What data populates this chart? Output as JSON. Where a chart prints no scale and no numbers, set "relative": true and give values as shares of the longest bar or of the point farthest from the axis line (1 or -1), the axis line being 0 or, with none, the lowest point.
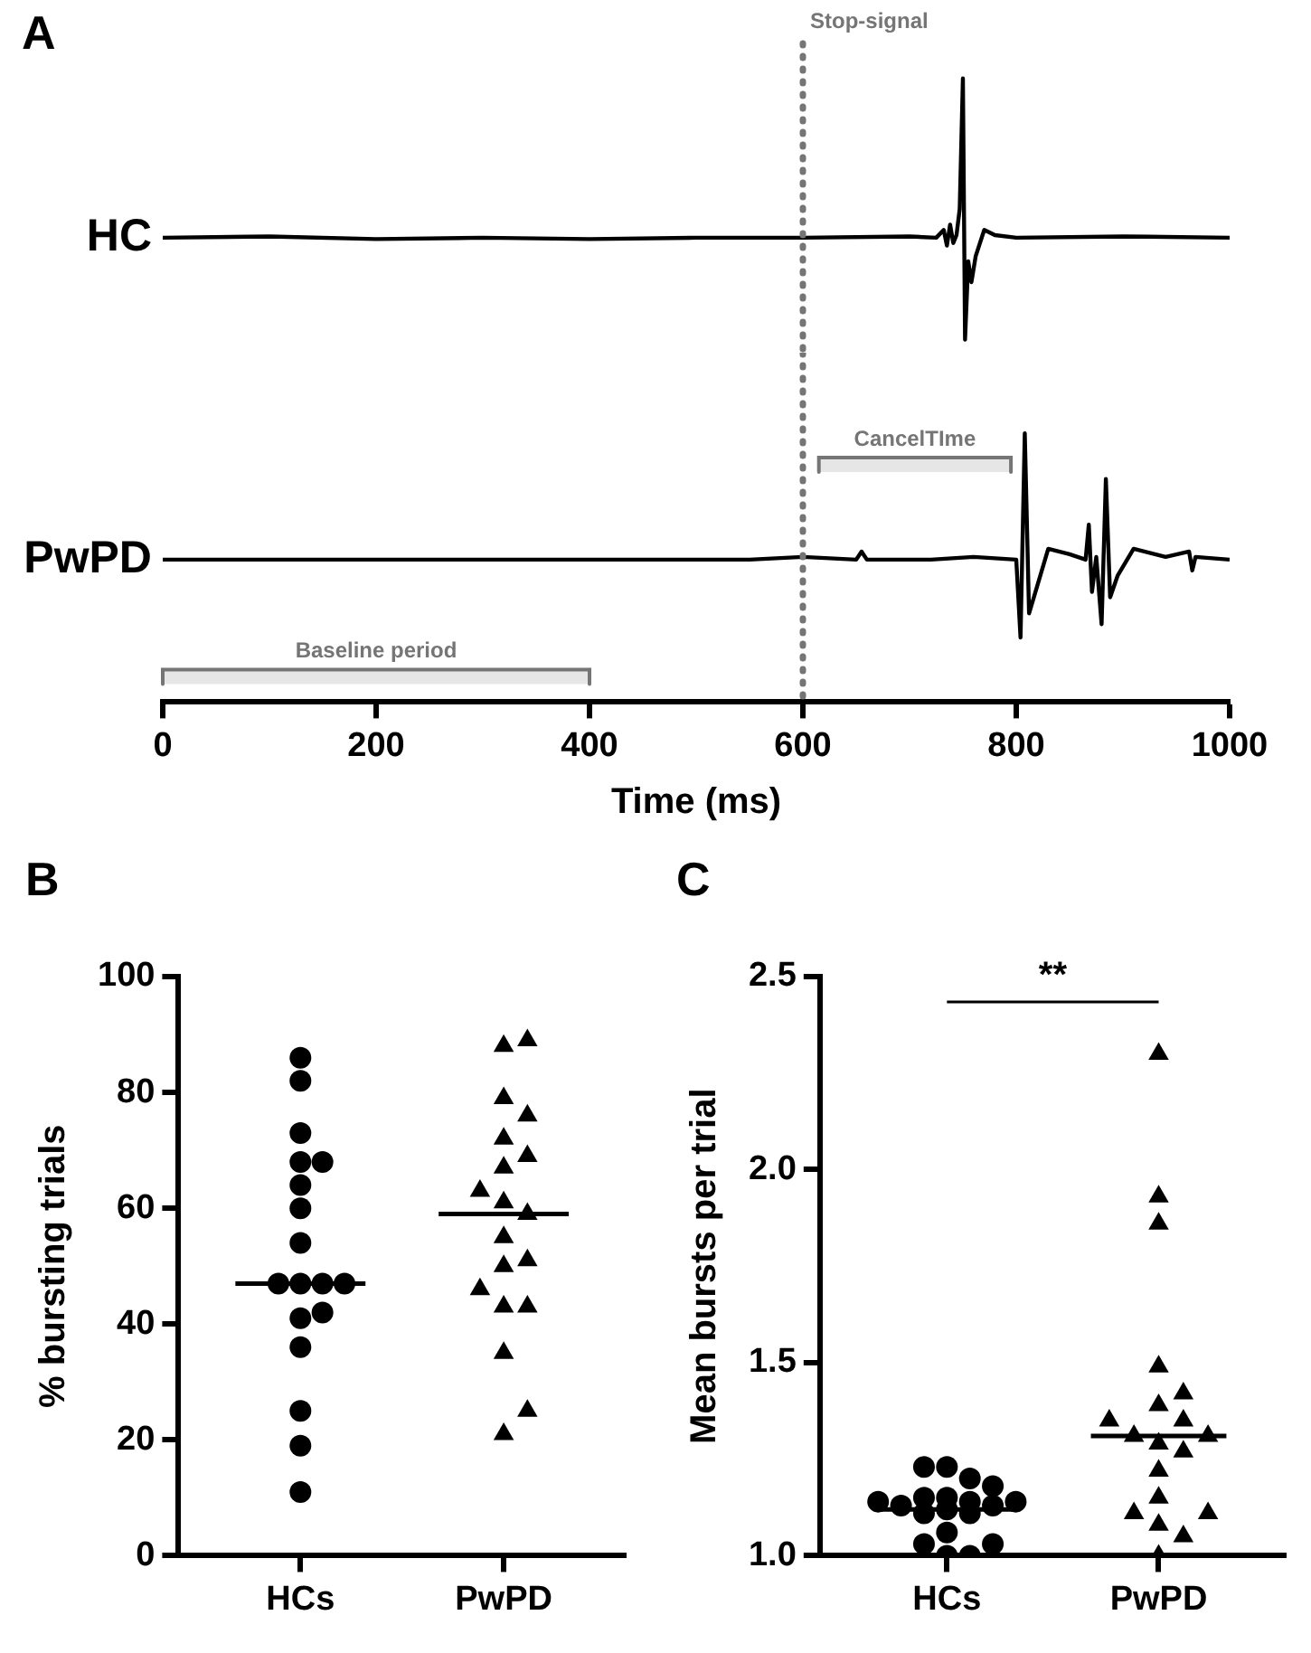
{
  "chart_data": [
    {
      "type": "line",
      "title": "A",
      "relative": true,
      "xlim": [
        0,
        1000
      ],
      "tick_labels": false,
      "series": [
        {
          "name": "HC",
          "color": "#000000",
          "x": [
            0,
            100,
            200,
            300,
            400,
            500,
            600,
            700,
            725,
            732,
            735,
            738,
            741,
            744,
            747,
            750,
            752,
            755,
            758,
            762,
            770,
            780,
            800,
            900,
            1000
          ],
          "values": [
            0.39,
            0.395,
            0.385,
            0.39,
            0.385,
            0.39,
            0.39,
            0.395,
            0.39,
            0.42,
            0.36,
            0.44,
            0.37,
            0.4,
            0.5,
            1.0,
            0.0,
            0.3,
            0.22,
            0.32,
            0.42,
            0.4,
            0.39,
            0.395,
            0.39
          ]
        }
      ],
      "ref_lines": [
        {
          "axis": "x",
          "value": 600,
          "label": "Stop-signal",
          "color": "#757575",
          "line_style": "dotted"
        }
      ]
    },
    {
      "type": "line",
      "relative": true,
      "xlim": [
        0,
        1000
      ],
      "xticks": [
        0,
        200,
        400,
        600,
        800,
        1000
      ],
      "xlabel": "Time (ms)",
      "tick_labels": "x",
      "series": [
        {
          "name": "PwPD",
          "color": "#000000",
          "x": [
            0,
            200,
            400,
            550,
            600,
            650,
            655,
            660,
            720,
            760,
            800,
            804,
            808,
            812,
            818,
            830,
            850,
            865,
            868,
            871,
            875,
            880,
            884,
            888,
            895,
            910,
            940,
            962,
            965,
            968,
            1000
          ],
          "values": [
            0.53,
            0.53,
            0.53,
            0.53,
            0.54,
            0.53,
            0.56,
            0.53,
            0.53,
            0.54,
            0.53,
            0.24,
            1.0,
            0.33,
            0.41,
            0.57,
            0.55,
            0.53,
            0.66,
            0.41,
            0.54,
            0.29,
            0.83,
            0.39,
            0.47,
            0.57,
            0.54,
            0.56,
            0.49,
            0.54,
            0.53
          ]
        }
      ],
      "ref_lines": [
        {
          "axis": "x",
          "value": 600,
          "color": "#757575",
          "line_style": "dotted"
        }
      ],
      "bands": [
        {
          "axis": "x",
          "from": 615,
          "to": 795,
          "label": "CancelTIme",
          "color": "#757575"
        },
        {
          "axis": "x",
          "from": 0,
          "to": 400,
          "label": "Baseline period",
          "color": "#757575"
        }
      ]
    },
    {
      "type": "scatter",
      "title": "B",
      "categories": [
        "HCs",
        "PwPD"
      ],
      "ylabel": "% bursting trials",
      "ylim": [
        0,
        100
      ],
      "yticks": [
        0,
        20,
        40,
        60,
        80,
        100
      ],
      "series": [
        {
          "color": "#000000",
          "marker": "circle",
          "x": [
            "HCs",
            "HCs",
            "HCs",
            "HCs",
            "HCs",
            "HCs",
            "HCs",
            "HCs",
            "HCs",
            "HCs",
            "HCs",
            "HCs",
            "HCs",
            "HCs",
            "HCs",
            "HCs",
            "HCs",
            "HCs"
          ],
          "values": [
            86,
            82,
            73,
            68,
            68,
            64,
            60,
            54,
            47,
            47,
            47,
            47,
            41,
            42,
            36,
            25,
            19,
            11
          ]
        },
        {
          "color": "#000000",
          "marker": "triangle",
          "x": [
            "PwPD",
            "PwPD",
            "PwPD",
            "PwPD",
            "PwPD",
            "PwPD",
            "PwPD",
            "PwPD",
            "PwPD",
            "PwPD",
            "PwPD",
            "PwPD",
            "PwPD",
            "PwPD",
            "PwPD",
            "PwPD",
            "PwPD",
            "PwPD",
            "PwPD"
          ],
          "values": [
            89,
            88,
            79,
            76,
            72,
            69,
            67,
            63,
            61,
            59,
            55,
            51,
            50,
            46,
            43,
            43,
            35,
            25,
            21
          ]
        },
        {
          "type": "box",
          "color": "#000000",
          "boxes": [
            {
              "low": 47,
              "q1": 47,
              "median": 47,
              "q3": 47,
              "high": 47
            },
            {
              "low": 59,
              "q1": 59,
              "median": 59,
              "q3": 59,
              "high": 59
            }
          ]
        }
      ]
    },
    {
      "type": "scatter",
      "title": "C",
      "categories": [
        "HCs",
        "PwPD"
      ],
      "ylabel": "Mean bursts per trial",
      "ylim": [
        1,
        2.5
      ],
      "yticks": [
        {
          "value": 1,
          "label": "1.0"
        },
        1.5,
        {
          "value": 2,
          "label": "2.0"
        },
        2.5
      ],
      "annotations": [
        "**"
      ],
      "series": [
        {
          "color": "#000000",
          "marker": "circle",
          "x": [
            "HCs",
            "HCs",
            "HCs",
            "HCs",
            "HCs",
            "HCs",
            "HCs",
            "HCs",
            "HCs",
            "HCs",
            "HCs",
            "HCs",
            "HCs",
            "HCs",
            "HCs",
            "HCs",
            "HCs",
            "HCs",
            "HCs"
          ],
          "values": [
            1.23,
            1.23,
            1.2,
            1.18,
            1.15,
            1.15,
            1.14,
            1.14,
            1.14,
            1.13,
            1.13,
            1.12,
            1.11,
            1.11,
            1.06,
            1.03,
            1.03,
            1.0,
            1.0
          ]
        },
        {
          "color": "#000000",
          "marker": "triangle",
          "x": [
            "PwPD",
            "PwPD",
            "PwPD",
            "PwPD",
            "PwPD",
            "PwPD",
            "PwPD",
            "PwPD",
            "PwPD",
            "PwPD",
            "PwPD",
            "PwPD",
            "PwPD",
            "PwPD",
            "PwPD",
            "PwPD",
            "PwPD",
            "PwPD",
            "PwPD"
          ],
          "values": [
            2.3,
            1.93,
            1.86,
            1.49,
            1.42,
            1.39,
            1.35,
            1.35,
            1.31,
            1.31,
            1.29,
            1.27,
            1.22,
            1.15,
            1.11,
            1.11,
            1.08,
            1.05,
            1.0
          ]
        },
        {
          "type": "box",
          "color": "#000000",
          "boxes": [
            {
              "low": 1.12,
              "q1": 1.12,
              "median": 1.12,
              "q3": 1.12,
              "high": 1.12
            },
            {
              "low": 1.31,
              "q1": 1.31,
              "median": 1.31,
              "q3": 1.31,
              "high": 1.31
            }
          ]
        }
      ]
    }
  ]
}
